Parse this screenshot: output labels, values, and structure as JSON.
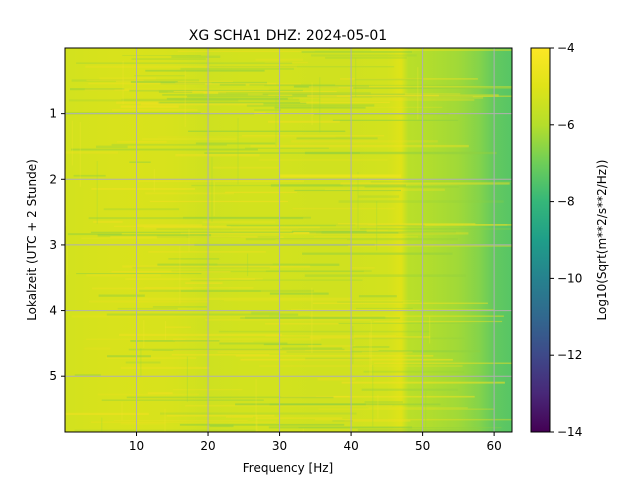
{
  "chart_data": {
    "type": "heatmap",
    "title": "XG SCHA1  DHZ: 2024-05-01",
    "xlabel": "Frequency [Hz]",
    "ylabel": "Lokalzeit (UTC + 2 Stunde)",
    "xlim": [
      0,
      62.5
    ],
    "ylim": [
      5.85,
      0
    ],
    "y_inverted": true,
    "xticks": [
      10,
      20,
      30,
      40,
      50,
      60
    ],
    "yticks": [
      1,
      2,
      3,
      4,
      5
    ],
    "grid": true,
    "colormap": "viridis",
    "colorbar": {
      "label": "Log10(Sqrt(m**2/s**2/Hz))",
      "range": [
        -14,
        -4
      ],
      "ticks": [
        -14,
        -12,
        -10,
        -8,
        -6,
        -4
      ]
    },
    "frequency_profile": {
      "frequency": [
        0,
        5,
        10,
        15,
        20,
        25,
        30,
        35,
        40,
        45,
        47,
        48,
        50,
        55,
        58,
        60,
        62.5
      ],
      "log10_amplitude": [
        -5.3,
        -5.2,
        -5.15,
        -5.2,
        -5.4,
        -5.3,
        -5.3,
        -5.35,
        -5.35,
        -5.3,
        -5.0,
        -5.9,
        -6.0,
        -6.3,
        -6.7,
        -7.2,
        -7.4
      ]
    },
    "features": [
      {
        "time": 1.95,
        "frequency_range": [
          30,
          47
        ],
        "log10_amplitude": -4.7
      }
    ]
  }
}
